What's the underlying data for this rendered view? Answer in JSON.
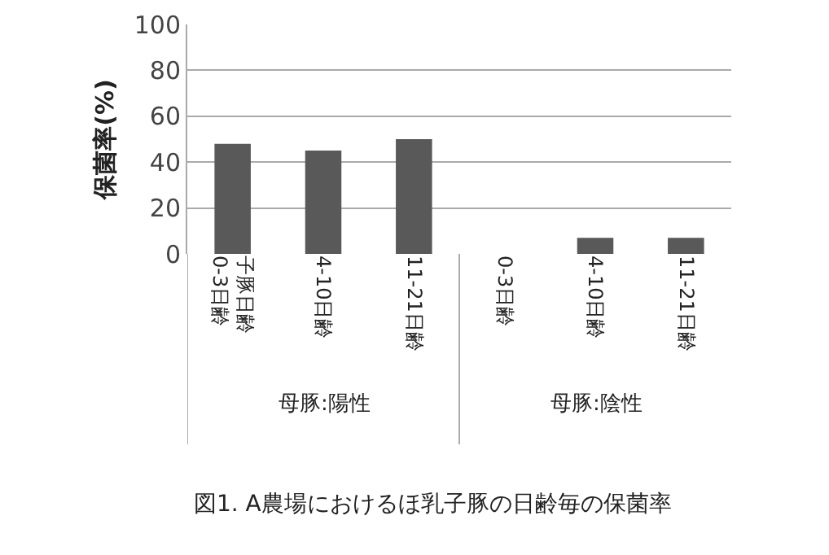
{
  "chart_data": {
    "type": "bar",
    "categories": [
      "子豚日齢\n0-3日齢",
      "4-10日齢",
      "11-21日齢",
      "0-3日齢",
      "4-10日齢",
      "11-21日齢"
    ],
    "values": [
      48,
      45,
      50,
      0,
      7,
      7
    ],
    "color": "#595959",
    "ylabel": "保菌率(%)",
    "ylim": [
      0,
      100
    ],
    "yticks": [
      0,
      20,
      40,
      60,
      80,
      100
    ],
    "grid": "y",
    "annotations": [
      "母豚:陽性",
      "母豚:陰性",
      "図1. A農場におけるほ乳子豚の日齢毎の保菌率"
    ]
  }
}
